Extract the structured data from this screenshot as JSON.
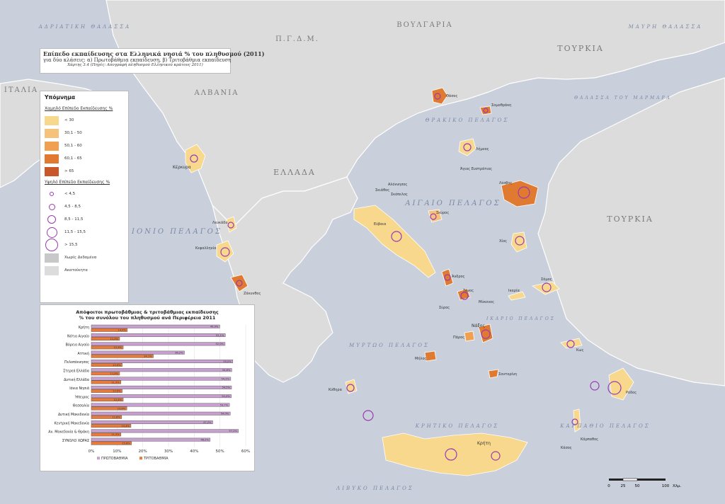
{
  "title": {
    "line1": "Επίπεδο εκπαίδευσης στα Ελληνικά νησιά % του πληθυσμού (2011)",
    "line2": "για δύο κλάσεις: α) Πρωτοβάθμια εκπαίδευση, β) Τριτοβάθμια εκπαίδευση",
    "line3": "Χάρτης 3.4 (Πηγές: Απογραφή πληθυσμού Ελληνικού κράτους 2011)"
  },
  "legend": {
    "heading": "Υπόμνημα",
    "low_title": "Χαμηλό Επίπεδο Εκπαίδευσης %",
    "low_classes": [
      {
        "label": "< 30",
        "color": "#f8d88c"
      },
      {
        "label": "30,1 - 50",
        "color": "#f6c27a"
      },
      {
        "label": "50,1 - 60",
        "color": "#f0a050"
      },
      {
        "label": "60,1 - 65",
        "color": "#e07a30"
      },
      {
        "label": "> 65",
        "color": "#c8582a"
      }
    ],
    "high_title": "Υψηλό Επίπεδο Εκπαίδευσης %",
    "high_classes": [
      {
        "label": "< 4,5",
        "size": 4
      },
      {
        "label": "4,5 - 8,5",
        "size": 7
      },
      {
        "label": "8,5 - 11,5",
        "size": 10
      },
      {
        "label": "11,5 - 15,5",
        "size": 13
      },
      {
        "label": "> 15,5",
        "size": 16
      }
    ],
    "no_data": "Χωρίς Δεδομένα",
    "uninhabited": "Ακατοίκητα"
  },
  "map_labels": {
    "seas": [
      "ΑΔΡΙΑΤΙΚΗ ΘΑΛΑΣΣΑ",
      "ΜΑΥΡΗ ΘΑΛΑΣΣΑ",
      "ΘΑΛΑΣΣΑ ΤΟΥ ΜΑΡΜΑΡΑ",
      "ΘΡΑΚΙΚΟ ΠΕΛΑΓΟΣ",
      "ΑΙΓΑΙΟ ΠΕΛΑΓΟΣ",
      "ΙΟΝΙΟ ΠΕΛΑΓΟΣ",
      "ΜΥΡΤΩΟ ΠΕΛΑΓΟΣ",
      "ΙΚΑΡΙΟ ΠΕΛΑΓΟΣ",
      "ΚΡΗΤΙΚΟ ΠΕΛΑΓΟΣ",
      "ΚΑΡΠΑΘΙΟ ΠΕΛΑΓΟΣ",
      "ΛΙΒΥΚΟ ΠΕΛΑΓΟΣ"
    ],
    "countries": [
      "ΙΤΑΛΙΑ",
      "Π.Γ.Δ.Μ.",
      "ΒΟΥΛΓΑΡΙΑ",
      "ΤΟΥΡΚΙΑ",
      "ΑΛΒΑΝΙΑ",
      "ΕΛΛΑΔΑ",
      "ΤΟΥΡΚΙΑ"
    ],
    "islands": [
      "Θάσος",
      "Σαμοθράκη",
      "Λήμνος",
      "Άγιος Ευστράτιος",
      "Λέσβος",
      "Χίος",
      "Σάμος",
      "Ικαρία",
      "Κέρκυρα",
      "Λευκάδα",
      "Κεφαλληνία",
      "Ζάκυνθος",
      "Εύβοια",
      "Σκιάθος",
      "Αλόννησος",
      "Σκόπελος",
      "Σκύρος",
      "Άνδρος",
      "Τήνος",
      "Σύρος",
      "Μύκονος",
      "Νάξος",
      "Πάρος",
      "Κως",
      "Ρόδος",
      "Κάρπαθος",
      "Κρήτη",
      "Κύθηρα",
      "Μήλος",
      "Σαντορίνη",
      "Κάσος"
    ]
  },
  "chart_data": {
    "type": "bar",
    "title": "Απόφοιτοι πρωτοβάθμιας & τριτοβάθμιας εκπαίδευσης",
    "subtitle": "% του συνόλου του πληθυσμού ανά Περιφέρεια 2011",
    "categories": [
      "Κρήτη",
      "Νότιο Αιγαίο",
      "Βόρειο Αιγαίο",
      "Αττική",
      "Πελοπόννησος",
      "Στερεά Ελλάδα",
      "Δυτική Ελλάδα",
      "Ιόνια Νησιά",
      "Ήπειρος",
      "Θεσσαλία",
      "Δυτική Μακεδονία",
      "Κεντρική Μακεδονία",
      "Αν. Μακεδονία & Θράκη",
      "ΣΥΝΟΛΟ ΧΩΡΑΣ"
    ],
    "series": [
      {
        "name": "ΠΡΩΤΟΒΑΘΜΙΑ",
        "color": "#c8a0d0",
        "values": [
          49.9,
          52.1,
          52.0,
          36.2,
          55.0,
          54.6,
          54.2,
          54.5,
          54.4,
          53.7,
          54.0,
          47.2,
          57.2,
          46.2
        ]
      },
      {
        "name": "ΤΡΙΤΟΒΑΘΜΙΑ",
        "color": "#e87a3a",
        "values": [
          14.0,
          11.0,
          12.4,
          24.1,
          12.0,
          11.0,
          11.5,
          12.0,
          12.4,
          13.8,
          11.8,
          15.4,
          11.5,
          15.6
        ]
      }
    ],
    "xlim": [
      0,
      60
    ],
    "xticks": [
      "0%",
      "10%",
      "20%",
      "30%",
      "40%",
      "50%",
      "60%"
    ],
    "legend_position": "bottom"
  },
  "scale": {
    "ticks": [
      "0",
      "25",
      "50",
      "100"
    ],
    "unit": "Χλμ."
  }
}
